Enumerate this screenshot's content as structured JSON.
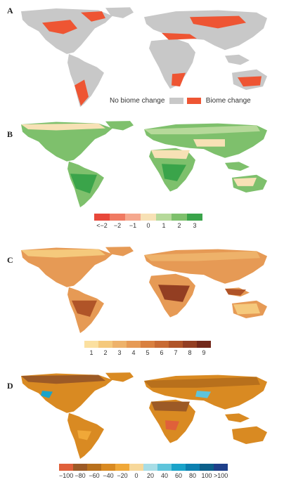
{
  "panels": [
    {
      "label": "A",
      "legend": {
        "no_change": {
          "label": "No biome change",
          "color": "#c8c8c8"
        },
        "change": {
          "label": "Biome change",
          "color": "#ee5533"
        }
      }
    },
    {
      "label": "B",
      "scale": {
        "colors": [
          "#e8473a",
          "#f07a62",
          "#f5a88e",
          "#f7e1b5",
          "#b6d99a",
          "#7ec06c",
          "#3aa44a"
        ],
        "ticks": [
          "<−2",
          "−2",
          "−1",
          "0",
          "1",
          "2",
          "3"
        ]
      }
    },
    {
      "label": "C",
      "scale": {
        "colors": [
          "#fbe0a0",
          "#f5c97c",
          "#eeb26a",
          "#e69a55",
          "#d9803f",
          "#c86a33",
          "#b05428",
          "#933e22",
          "#72281a"
        ],
        "ticks": [
          "1",
          "2",
          "3",
          "4",
          "5",
          "6",
          "7",
          "8",
          "9"
        ]
      }
    },
    {
      "label": "D",
      "scale": {
        "colors": [
          "#e0603a",
          "#9c5a26",
          "#b8701c",
          "#d98a22",
          "#f0a838",
          "#f7d89a",
          "#a8dde6",
          "#5ec4db",
          "#1aa3c9",
          "#0c80b0",
          "#0b5f8a",
          "#1e3f8a"
        ],
        "ticks": [
          "−100",
          "−80",
          "−60",
          "−40",
          "−20",
          "0",
          "20",
          "40",
          "60",
          "80",
          "100",
          ">100"
        ]
      }
    }
  ]
}
